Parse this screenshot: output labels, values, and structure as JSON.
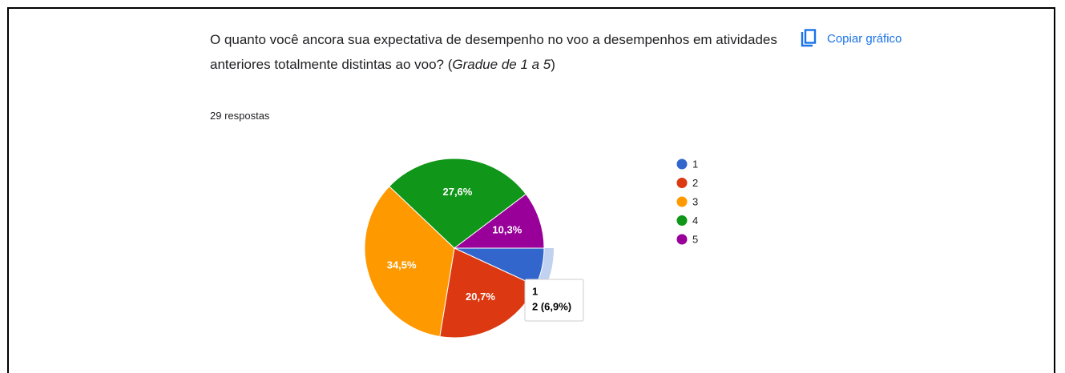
{
  "chart_data": {
    "type": "pie",
    "title": [
      "O quanto você ancora sua expectativa de desempenho no voo a desempenhos em atividades anteriores totalmente distintas ao voo? (",
      "Gradue de 1 a 5",
      ")"
    ],
    "subtitle": "29 respostas",
    "button": "Copiar gráfico",
    "categories": [
      "1",
      "2",
      "3",
      "4",
      "5"
    ],
    "values": [
      6.9,
      20.7,
      34.5,
      27.6,
      10.3
    ],
    "value_labels": [
      null,
      "20,7%",
      "34,5%",
      "27,6%",
      "10,3%"
    ],
    "colors": [
      "#3366cc",
      "#dc3912",
      "#ff9900",
      "#109618",
      "#990099"
    ],
    "legend": "right",
    "tooltip": {
      "title": "1",
      "text": "2 (6,9%)"
    }
  }
}
